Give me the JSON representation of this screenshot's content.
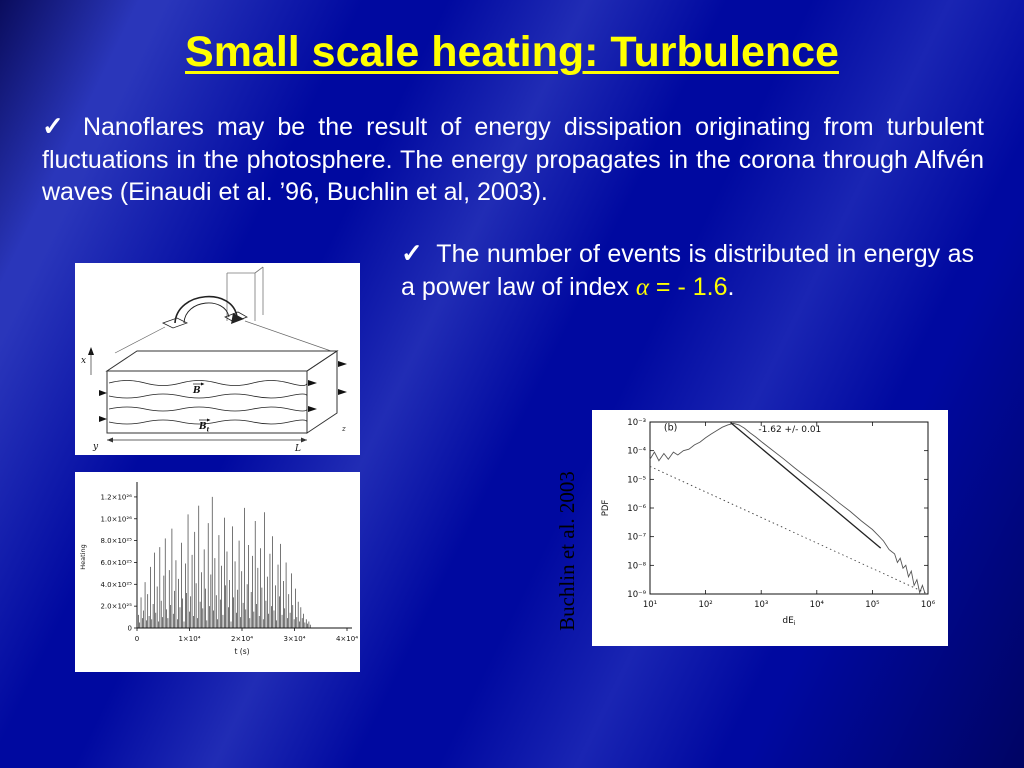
{
  "slide": {
    "title": "Small scale heating: Turbulence",
    "check_glyph": "✓",
    "bullet1": "Nanoflares may be the result of energy dissipation originating from turbulent fluctuations in the photosphere. The energy propagates in the corona through Alfvén waves (Einaudi et al. ’96, Buchlin et al, 2003).",
    "bullet2_pre": "The number of events is distributed in energy as a power law of index ",
    "bullet2_alpha": "α",
    "bullet2_eq": " = - 1.6",
    "bullet2_period": ".",
    "citation": "Buchlin et al. 2003"
  },
  "colors": {
    "background": "#0009A0",
    "title": "#FFFF00",
    "body": "#FFFFFF",
    "highlight": "#FFFF00",
    "citation": "#000000",
    "figure_bg": "#FFFFFF"
  },
  "chart_data": [
    {
      "type": "diagram",
      "description": "Schematic of a coronal loop arch zooming into a 3D box of turbulent magnetic field lines",
      "labels": {
        "x": "x",
        "y": "y",
        "z": "z",
        "L": "L",
        "B": "B",
        "t": "t"
      }
    },
    {
      "type": "line",
      "style": "spike-series",
      "xlabel": "t (s)",
      "ylabel": "Heating",
      "xlim": [
        0,
        40000
      ],
      "t_max_data": 33000,
      "x_ticks": [
        "0",
        "1×10⁴",
        "2×10⁴",
        "3×10⁴",
        "4×10⁴"
      ],
      "y_ticks": [
        "0",
        "2.0×10²⁵",
        "4.0×10²⁵",
        "6.0×10²⁵",
        "8.0×10²⁵",
        "1.0×10²⁶",
        "1.2×10²⁶"
      ],
      "values_unit": "1e25",
      "values_1e25": [
        0.3,
        1.2,
        0.5,
        2.8,
        0.9,
        1.6,
        4.2,
        0.7,
        3.1,
        1.1,
        5.6,
        0.8,
        2.2,
        6.9,
        1.4,
        3.8,
        0.6,
        7.4,
        2.5,
        1.0,
        4.8,
        8.2,
        1.7,
        0.9,
        5.3,
        2.1,
        9.1,
        1.3,
        3.4,
        6.2,
        0.8,
        4.5,
        1.9,
        7.8,
        2.7,
        0.6,
        5.9,
        3.2,
        10.4,
        1.5,
        2.9,
        6.7,
        1.1,
        8.8,
        4.1,
        0.9,
        11.2,
        2.4,
        5.1,
        1.8,
        7.2,
        3.6,
        0.7,
        9.6,
        2.0,
        4.9,
        12.0,
        1.6,
        6.4,
        3.0,
        0.8,
        8.5,
        2.6,
        5.7,
        1.2,
        10.1,
        3.9,
        7.0,
        1.9,
        4.4,
        0.6,
        9.3,
        2.8,
        6.1,
        1.4,
        3.5,
        8.0,
        1.0,
        5.2,
        2.3,
        11.0,
        1.7,
        4.0,
        7.6,
        0.9,
        3.3,
        6.6,
        1.5,
        9.8,
        2.2,
        5.5,
        1.1,
        7.3,
        3.7,
        0.8,
        10.6,
        2.5,
        4.7,
        1.3,
        6.8,
        2.0,
        8.4,
        1.6,
        3.9,
        0.7,
        5.8,
        2.9,
        7.7,
        1.2,
        4.3,
        1.8,
        6.0,
        0.9,
        3.1,
        1.4,
        5.0,
        2.1,
        0.8,
        3.6,
        1.0,
        2.4,
        0.6,
        1.9,
        0.9,
        1.3,
        0.5,
        0.8,
        0.4,
        0.6,
        0.3
      ]
    },
    {
      "type": "line",
      "scale": "log-log",
      "panel_label": "(b)",
      "annotation": "-1.62 +/- 0.01",
      "xlabel": "dE",
      "xlabel_sub": "i",
      "ylabel": "PDF",
      "xlog_range": [
        1,
        6
      ],
      "ylog_range": [
        -9,
        -3
      ],
      "x_ticks": [
        "10¹",
        "10²",
        "10³",
        "10⁴",
        "10⁵",
        "10⁶"
      ],
      "y_ticks": [
        "10⁻³",
        "10⁻⁴",
        "10⁻⁵",
        "10⁻⁶",
        "10⁻⁷",
        "10⁻⁸",
        "10⁻⁹"
      ],
      "series": [
        {
          "name": "pdf-curve",
          "style": "solid-noisy",
          "points": [
            [
              1.0,
              -4.3
            ],
            [
              1.08,
              -4.05
            ],
            [
              1.16,
              -4.35
            ],
            [
              1.25,
              -4.1
            ],
            [
              1.33,
              -4.3
            ],
            [
              1.42,
              -4.05
            ],
            [
              1.5,
              -4.15
            ],
            [
              1.6,
              -4.0
            ],
            [
              1.7,
              -3.95
            ],
            [
              1.8,
              -3.8
            ],
            [
              1.9,
              -3.7
            ],
            [
              2.0,
              -3.55
            ],
            [
              2.1,
              -3.42
            ],
            [
              2.2,
              -3.3
            ],
            [
              2.3,
              -3.18
            ],
            [
              2.4,
              -3.1
            ],
            [
              2.5,
              -3.05
            ],
            [
              2.6,
              -3.1
            ],
            [
              2.7,
              -3.22
            ],
            [
              2.8,
              -3.38
            ],
            [
              2.9,
              -3.52
            ],
            [
              3.0,
              -3.68
            ],
            [
              3.2,
              -3.98
            ],
            [
              3.4,
              -4.28
            ],
            [
              3.6,
              -4.6
            ],
            [
              3.8,
              -4.9
            ],
            [
              4.0,
              -5.2
            ],
            [
              4.2,
              -5.5
            ],
            [
              4.4,
              -5.82
            ],
            [
              4.6,
              -6.12
            ],
            [
              4.8,
              -6.45
            ],
            [
              5.0,
              -6.75
            ],
            [
              5.1,
              -6.95
            ],
            [
              5.2,
              -7.15
            ],
            [
              5.3,
              -7.45
            ],
            [
              5.4,
              -7.6
            ],
            [
              5.45,
              -7.9
            ],
            [
              5.5,
              -7.75
            ],
            [
              5.55,
              -8.1
            ],
            [
              5.6,
              -8.0
            ],
            [
              5.65,
              -8.4
            ],
            [
              5.7,
              -8.2
            ],
            [
              5.75,
              -8.7
            ],
            [
              5.8,
              -8.5
            ],
            [
              5.85,
              -8.95
            ],
            [
              5.9,
              -8.7
            ],
            [
              5.95,
              -9.0
            ]
          ]
        },
        {
          "name": "powerlaw-fit",
          "style": "solid",
          "points": [
            [
              2.45,
              -3.02
            ],
            [
              5.15,
              -7.4
            ]
          ]
        },
        {
          "name": "reference-dotted",
          "style": "dotted",
          "points": [
            [
              1.0,
              -4.55
            ],
            [
              6.0,
              -9.0
            ]
          ]
        }
      ]
    }
  ]
}
